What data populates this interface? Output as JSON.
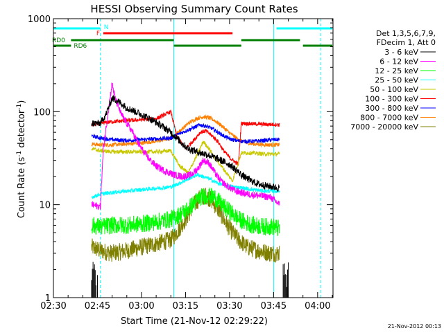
{
  "chart_data": {
    "type": "line",
    "title": "HESSI Observing Summary Count Rates",
    "xlabel": "Start Time (21-Nov-12 02:29:22)",
    "ylabel": "Count Rate (s",
    "ylabel_sup": "-1",
    "ylabel_mid": " detector",
    "ylabel_sup2": "-1",
    "ylabel_end": ")",
    "yscale": "log",
    "ylim": [
      1,
      1000
    ],
    "xlim_minutes": [
      0,
      95
    ],
    "x_ticks": [
      "02:30",
      "02:45",
      "03:00",
      "03:15",
      "03:30",
      "03:45",
      "04:00"
    ],
    "x_tick_minutes": [
      0,
      15,
      30,
      45,
      60,
      75,
      90
    ],
    "y_ticks": [
      "1",
      "10",
      "100",
      "1000"
    ],
    "y_tick_values": [
      1,
      10,
      100,
      1000
    ],
    "grid": false,
    "legend_position": "right",
    "legend_header": [
      "Det 1,3,5,6,7,9,",
      "FDecim 1, Att 0"
    ],
    "timestamp": "21-Nov-2012 00:13",
    "flag_labels": {
      "N": "N",
      "F": "F",
      "RD0": "RD0",
      "RD6": "RD6"
    },
    "flags": {
      "N": {
        "color": "#00ffff",
        "intervals_minutes": [
          [
            0,
            16
          ],
          [
            76,
            95
          ]
        ]
      },
      "F": {
        "color": "#ff0000",
        "intervals_minutes": [
          [
            17,
            61
          ]
        ]
      },
      "RD0": {
        "color": "#008000",
        "intervals_minutes": [
          [
            6,
            41
          ],
          [
            64,
            84
          ]
        ]
      },
      "RD6": {
        "color": "#008000",
        "intervals_minutes": [
          [
            0,
            6
          ],
          [
            41,
            64
          ],
          [
            85,
            95
          ]
        ]
      }
    },
    "dashed_lines_minutes": [
      16,
      91
    ],
    "solid_lines_minutes": [
      0,
      41,
      75
    ],
    "data_gaps_minutes": [
      [
        0,
        13
      ],
      [
        78,
        95
      ]
    ],
    "series": [
      {
        "name": "3 - 6 keV",
        "color": "#000000",
        "x": [
          13,
          16,
          18,
          20,
          22,
          25,
          28,
          31,
          34,
          37,
          40,
          42,
          44,
          46,
          48,
          50,
          52,
          54,
          56,
          58,
          60,
          62,
          64,
          66,
          69,
          72,
          75,
          77
        ],
        "y": [
          75,
          75,
          95,
          140,
          130,
          110,
          100,
          90,
          80,
          70,
          60,
          52,
          45,
          40,
          38,
          36,
          35,
          33,
          31,
          29,
          27,
          24,
          21,
          19,
          17,
          16,
          15.5,
          15
        ]
      },
      {
        "name": "6 - 12 keV",
        "color": "#ff00ff",
        "x": [
          13,
          16,
          17,
          19,
          20,
          21,
          23,
          25,
          27,
          29,
          31,
          33,
          35,
          38,
          41,
          44,
          47,
          49,
          51,
          53,
          55,
          57,
          59,
          62,
          66,
          70,
          74,
          77
        ],
        "y": [
          10,
          9.5,
          40,
          120,
          200,
          140,
          95,
          75,
          60,
          45,
          36,
          30,
          26,
          23,
          21,
          20,
          21,
          24,
          30,
          28,
          22,
          18,
          16,
          14,
          13,
          12.5,
          12,
          10
        ]
      },
      {
        "name": "12 - 25 keV",
        "color": "#00ff00",
        "x": [
          13,
          16,
          20,
          25,
          30,
          35,
          40,
          42,
          45,
          48,
          50,
          52,
          55,
          58,
          61,
          63,
          65,
          68,
          72,
          75,
          77
        ],
        "y": [
          6,
          5.8,
          6,
          6,
          6.2,
          6.5,
          7,
          7.5,
          8.5,
          10.5,
          12,
          12.5,
          12,
          9.5,
          8,
          7,
          6.5,
          6,
          5.8,
          5.8,
          5.5
        ]
      },
      {
        "name": "25 - 50 keV",
        "color": "#00ffff",
        "x": [
          13,
          16,
          20,
          25,
          30,
          35,
          40,
          43,
          46,
          49,
          51,
          53,
          56,
          59,
          62,
          65,
          68,
          72,
          75,
          77
        ],
        "y": [
          12,
          13,
          13.5,
          14,
          14.5,
          15,
          15.5,
          17,
          19,
          21,
          20,
          19,
          17,
          16,
          15.5,
          15,
          14.5,
          14,
          14,
          14
        ]
      },
      {
        "name": "50 - 100 keV",
        "color": "#c8c800",
        "x": [
          13,
          16,
          20,
          25,
          30,
          35,
          40,
          43,
          46,
          48,
          50,
          51,
          53,
          55,
          58,
          61,
          64,
          68,
          72,
          75,
          77
        ],
        "y": [
          40,
          38,
          37,
          37,
          37,
          37,
          38,
          26,
          22,
          30,
          40,
          48,
          40,
          32,
          24,
          18,
          36,
          36,
          35,
          35,
          35
        ]
      },
      {
        "name": "100 - 300 keV",
        "color": "#ff0000",
        "x": [
          13,
          16,
          20,
          25,
          30,
          35,
          40,
          42,
          45,
          48,
          50,
          52,
          54,
          56,
          58,
          60,
          63,
          64,
          68,
          72,
          75,
          77
        ],
        "y": [
          72,
          75,
          78,
          80,
          82,
          84,
          100,
          55,
          40,
          50,
          60,
          62,
          55,
          48,
          38,
          32,
          27,
          75,
          74,
          73,
          73,
          72
        ]
      },
      {
        "name": "300 - 800 keV",
        "color": "#0000ff",
        "x": [
          13,
          16,
          20,
          25,
          30,
          35,
          40,
          42,
          45,
          48,
          50,
          52,
          54,
          56,
          58,
          60,
          62,
          64,
          68,
          72,
          75,
          77
        ],
        "y": [
          55,
          52,
          50,
          49,
          50,
          51,
          52,
          56,
          62,
          68,
          72,
          70,
          66,
          60,
          55,
          51,
          49,
          48,
          48,
          49,
          50,
          50
        ]
      },
      {
        "name": "800 - 7000 keV",
        "color": "#ff8000",
        "x": [
          13,
          16,
          20,
          25,
          30,
          35,
          40,
          43,
          46,
          49,
          51,
          53,
          55,
          57,
          59,
          61,
          63,
          65,
          68,
          72,
          75,
          77
        ],
        "y": [
          45,
          44,
          44,
          45,
          46,
          48,
          52,
          62,
          75,
          85,
          88,
          86,
          80,
          72,
          63,
          56,
          50,
          47,
          45,
          44,
          44,
          44
        ]
      },
      {
        "name": "7000 - 20000 keV",
        "color": "#808000",
        "x": [
          13,
          16,
          20,
          25,
          30,
          35,
          40,
          42,
          45,
          48,
          50,
          52,
          54,
          56,
          58,
          60,
          63,
          66,
          70,
          74,
          77
        ],
        "y": [
          3.5,
          3.2,
          3.0,
          3.2,
          3.5,
          3.8,
          4.2,
          5,
          7,
          10,
          12,
          12.5,
          11,
          9,
          7,
          5.5,
          4.2,
          3.5,
          3.2,
          3.0,
          3.0
        ]
      }
    ]
  }
}
